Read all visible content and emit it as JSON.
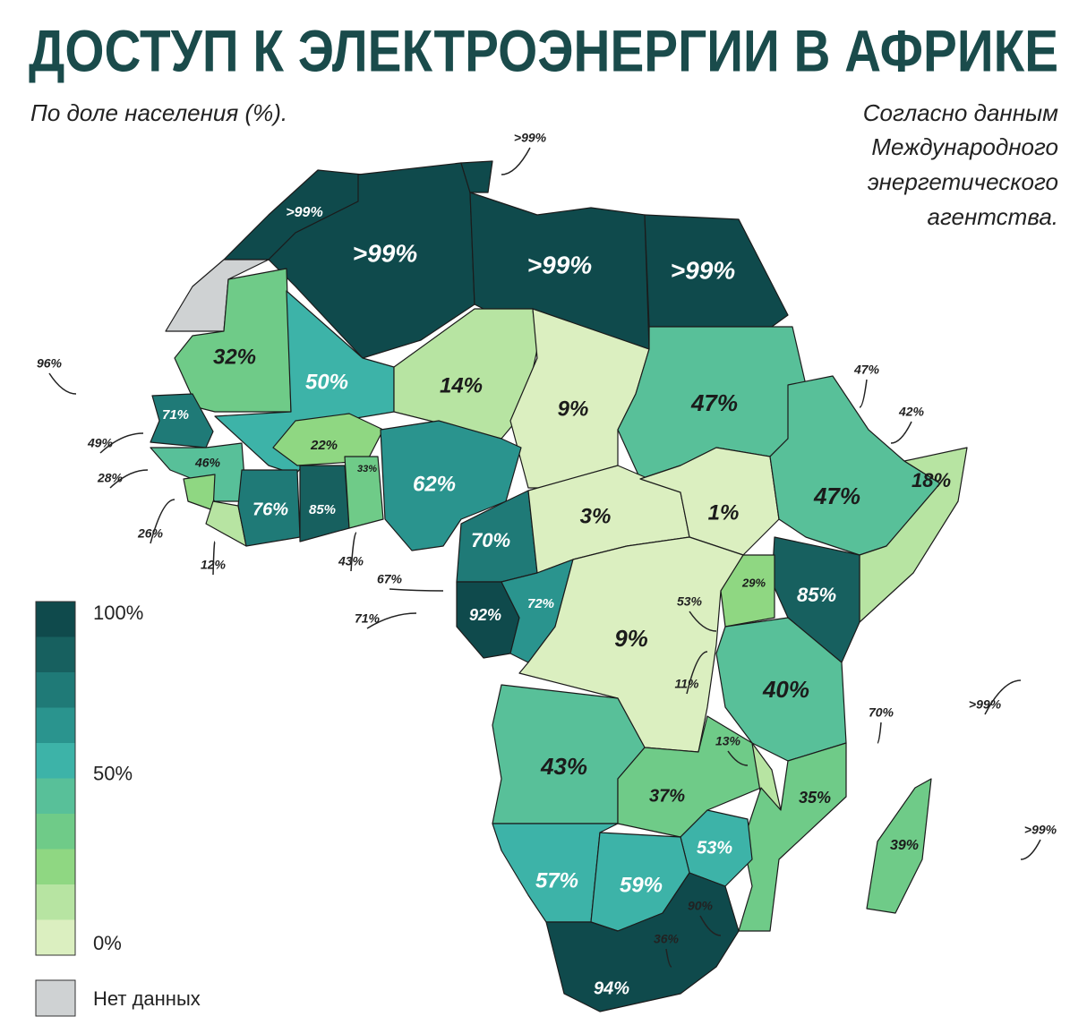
{
  "header": {
    "title": "ДОСТУП К ЭЛЕКТРОЭНЕРГИИ В АФРИКЕ",
    "subtitle": "По доле населения (%).",
    "source": [
      "Согласно данным",
      "Международного",
      "энергетического",
      "агентства."
    ]
  },
  "legend": {
    "colors": [
      "#0f4a4c",
      "#17605f",
      "#1f7a77",
      "#2a948e",
      "#3db3a8",
      "#58c099",
      "#6fcb88",
      "#8fd782",
      "#b7e4a2",
      "#dbefc0"
    ],
    "labels": [
      "100%",
      "50%",
      "0%"
    ],
    "no_data_color": "#cfd2d3",
    "no_data": "Нет данных"
  },
  "regions": [
    {
      "label": ">99%",
      "color": "#0f4a4c"
    },
    {
      "color": "#cfd2d3"
    },
    {
      "label": ">99%",
      "color": "#0f4a4c"
    },
    {
      "color": "#0f4a4c"
    },
    {
      "label": ">99%",
      "color": "#0f4a4c"
    },
    {
      "label": ">99%",
      "color": "#0f4a4c"
    },
    {
      "label": "32%",
      "color": "#6fcb88"
    },
    {
      "label": "50%",
      "color": "#3db3a8"
    },
    {
      "label": "14%",
      "color": "#b7e4a2"
    },
    {
      "label": "9%",
      "color": "#dbefc0"
    },
    {
      "label": "47%",
      "color": "#58c099"
    },
    {
      "label": "71%",
      "color": "#1f7a77"
    },
    {
      "label": "46%",
      "color": "#58c099"
    },
    {
      "color": "#8fd782"
    },
    {
      "color": "#b7e4a2"
    },
    {
      "label": "76%",
      "color": "#1f7a77"
    },
    {
      "label": "22%",
      "color": "#8fd782"
    },
    {
      "label": "85%",
      "color": "#17605f"
    },
    {
      "label": "33%",
      "color": "#6fcb88"
    },
    {
      "label": "62%",
      "color": "#2a948e"
    },
    {
      "label": "70%",
      "color": "#1f7a77"
    },
    {
      "label": "3%",
      "color": "#dbefc0"
    },
    {
      "label": "1%",
      "color": "#dbefc0"
    },
    {
      "label": "47%",
      "color": "#58c099"
    },
    {
      "label": "18%",
      "color": "#b7e4a2"
    },
    {
      "label": "85%",
      "color": "#17605f"
    },
    {
      "label": "29%",
      "color": "#8fd782"
    },
    {
      "label": "92%",
      "color": "#0f4a4c"
    },
    {
      "label": "72%",
      "color": "#2a948e"
    },
    {
      "label": "9%",
      "color": "#dbefc0"
    },
    {
      "label": "40%",
      "color": "#58c099"
    },
    {
      "label": "43%",
      "color": "#58c099"
    },
    {
      "label": "37%",
      "color": "#6fcb88"
    },
    {
      "color": "#b7e4a2"
    },
    {
      "label": "35%",
      "color": "#6fcb88"
    },
    {
      "label": "53%",
      "color": "#3db3a8"
    },
    {
      "label": "57%",
      "color": "#3db3a8"
    },
    {
      "label": "59%",
      "color": "#3db3a8"
    },
    {
      "label": "94%",
      "color": "#0f4a4c"
    },
    {
      "label": "39%",
      "color": "#6fcb88"
    }
  ],
  "callouts": [
    ">99%",
    "96%",
    "49%",
    "28%",
    "26%",
    "12%",
    "43%",
    "67%",
    "71%",
    "53%",
    "11%",
    "13%",
    "90%",
    "36%",
    "47%",
    "42%",
    "70%",
    ">99%",
    ">99%"
  ]
}
